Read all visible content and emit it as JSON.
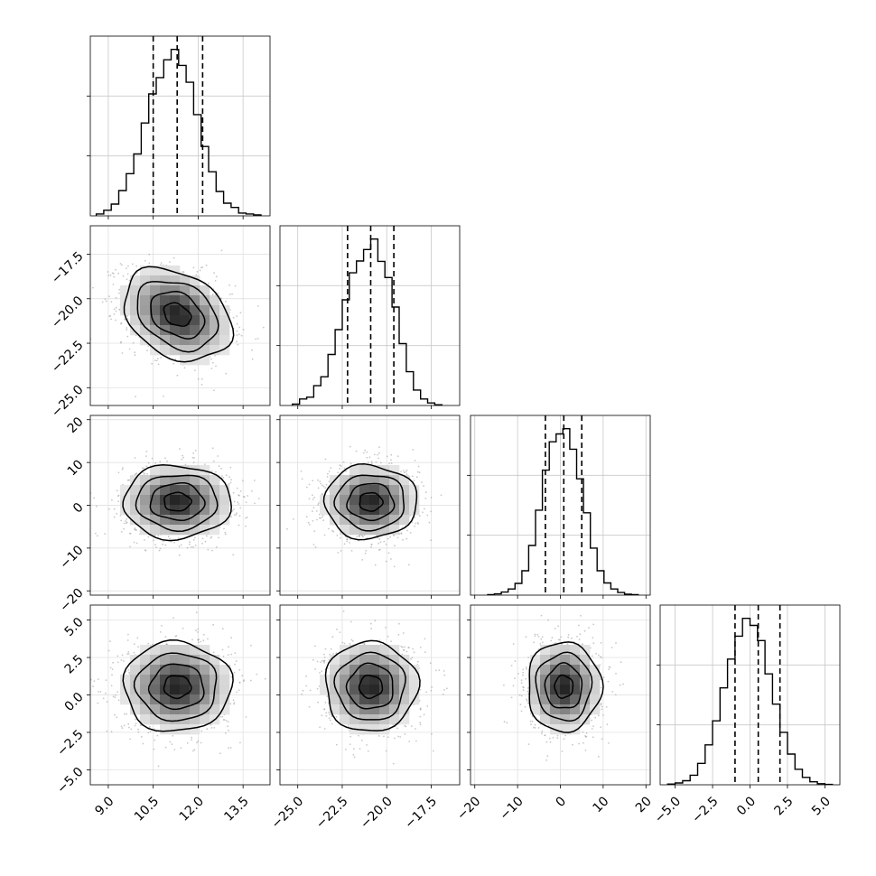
{
  "chart_data": {
    "type": "corner",
    "parameters": [
      {
        "range": [
          8.4,
          14.4
        ],
        "ticks": [
          9.0,
          10.5,
          12.0,
          13.5
        ],
        "tick_labels": [
          "9.0",
          "10.5",
          "12.0",
          "13.5"
        ],
        "quantiles": [
          10.5,
          11.3,
          12.15
        ],
        "hist_bins": [
          8.6,
          8.85,
          9.1,
          9.35,
          9.6,
          9.85,
          10.1,
          10.35,
          10.6,
          10.85,
          11.1,
          11.35,
          11.6,
          11.85,
          12.1,
          12.35,
          12.6,
          12.85,
          13.1,
          13.35,
          13.6,
          13.85,
          14.1
        ],
        "hist_counts": [
          40,
          120,
          250,
          540,
          900,
          1320,
          1980,
          2600,
          2950,
          3330,
          3550,
          3210,
          2850,
          2160,
          1480,
          940,
          520,
          270,
          180,
          60,
          40,
          20
        ]
      },
      {
        "range": [
          -26.0,
          -15.9
        ],
        "ticks": [
          -25.0,
          -22.5,
          -20.0,
          -17.5
        ],
        "tick_labels": [
          "−25.0",
          "−22.5",
          "−20.0",
          "−17.5"
        ],
        "quantiles": [
          -22.2,
          -20.9,
          -19.6
        ],
        "hist_bins": [
          -25.3,
          -24.9,
          -24.5,
          -24.1,
          -23.7,
          -23.3,
          -22.9,
          -22.5,
          -22.1,
          -21.7,
          -21.3,
          -20.9,
          -20.5,
          -20.1,
          -19.7,
          -19.3,
          -18.9,
          -18.5,
          -18.1,
          -17.7,
          -17.3,
          -16.9
        ],
        "hist_counts": [
          40,
          180,
          230,
          550,
          800,
          1420,
          2110,
          2940,
          3690,
          4020,
          4340,
          4630,
          4010,
          3560,
          2740,
          1720,
          940,
          430,
          180,
          70,
          20
        ]
      },
      {
        "range": [
          -21,
          21
        ],
        "ticks": [
          -20,
          -10,
          0,
          10,
          20
        ],
        "tick_labels": [
          "−20",
          "−10",
          "0",
          "10",
          "20"
        ],
        "quantiles": [
          -3.5,
          0.8,
          5.0
        ],
        "hist_bins": [
          -17,
          -15.4,
          -13.8,
          -12.2,
          -10.6,
          -9,
          -7.4,
          -5.8,
          -4.2,
          -2.6,
          -1,
          0.6,
          2.2,
          3.8,
          5.4,
          7,
          8.6,
          10.2,
          11.8,
          13.4,
          15,
          16.6,
          18.2
        ],
        "hist_counts": [
          10,
          30,
          70,
          140,
          270,
          560,
          1140,
          1950,
          2870,
          3520,
          3700,
          3820,
          3350,
          2670,
          1890,
          1080,
          560,
          280,
          140,
          60,
          20,
          10
        ]
      },
      {
        "range": [
          -6.0,
          6.0
        ],
        "ticks": [
          -5.0,
          -2.5,
          0.0,
          2.5,
          5.0
        ],
        "tick_labels": [
          "−5.0",
          "−2.5",
          "0.0",
          "2.5",
          "5.0"
        ],
        "quantiles": [
          -1.0,
          0.55,
          2.0
        ],
        "hist_bins": [
          -5.5,
          -5.0,
          -4.5,
          -4.0,
          -3.5,
          -3.0,
          -2.5,
          -2.0,
          -1.5,
          -1.0,
          -0.5,
          0.0,
          0.5,
          1.0,
          1.5,
          2.0,
          2.5,
          3.0,
          3.5,
          4.0,
          4.5,
          5.0,
          5.5
        ],
        "hist_counts": [
          20,
          50,
          110,
          260,
          580,
          1080,
          1730,
          2620,
          3400,
          4020,
          4500,
          4310,
          3900,
          3000,
          2180,
          1420,
          830,
          420,
          200,
          80,
          30,
          10
        ]
      }
    ],
    "pairs": [
      {
        "x": 0,
        "y": 1,
        "mean": [
          11.3,
          -20.9
        ],
        "sd": [
          0.9,
          1.3
        ],
        "rho": -0.3
      },
      {
        "x": 0,
        "y": 2,
        "mean": [
          11.3,
          0.8
        ],
        "sd": [
          0.9,
          4.3
        ],
        "rho": 0.0
      },
      {
        "x": 1,
        "y": 2,
        "mean": [
          -20.9,
          0.8
        ],
        "sd": [
          1.3,
          4.3
        ],
        "rho": 0.0
      },
      {
        "x": 0,
        "y": 3,
        "mean": [
          11.3,
          0.55
        ],
        "sd": [
          0.9,
          1.5
        ],
        "rho": 0.0
      },
      {
        "x": 1,
        "y": 3,
        "mean": [
          -20.9,
          0.55
        ],
        "sd": [
          1.3,
          1.5
        ],
        "rho": 0.0
      },
      {
        "x": 2,
        "y": 3,
        "mean": [
          0.8,
          0.55
        ],
        "sd": [
          4.3,
          1.5
        ],
        "rho": 0.0
      }
    ],
    "contour_levels_sigma": [
      0.5,
      1.0,
      1.5,
      2.0
    ],
    "grid": true,
    "quantile_line_style": "dashed"
  }
}
